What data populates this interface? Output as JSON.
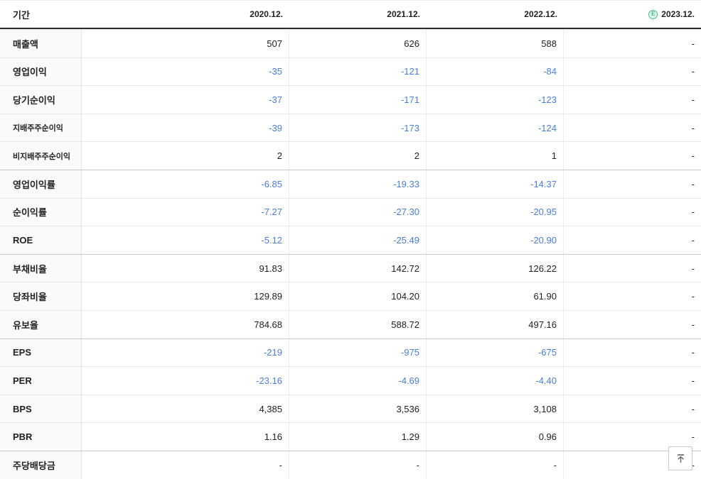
{
  "header": {
    "period_label": "기간",
    "columns": [
      {
        "label": "2020.12.",
        "estimate": false
      },
      {
        "label": "2021.12.",
        "estimate": false
      },
      {
        "label": "2022.12.",
        "estimate": false
      },
      {
        "label": "2023.12.",
        "estimate": true
      }
    ],
    "estimate_icon_letter": "E"
  },
  "rows": [
    {
      "label": "매출액",
      "sub": false,
      "group": false,
      "values": [
        "507",
        "626",
        "588",
        "-"
      ]
    },
    {
      "label": "영업이익",
      "sub": false,
      "group": false,
      "values": [
        "-35",
        "-121",
        "-84",
        "-"
      ]
    },
    {
      "label": "당기순이익",
      "sub": false,
      "group": false,
      "values": [
        "-37",
        "-171",
        "-123",
        "-"
      ]
    },
    {
      "label": "지배주주순이익",
      "sub": true,
      "group": false,
      "values": [
        "-39",
        "-173",
        "-124",
        "-"
      ]
    },
    {
      "label": "비지배주주순이익",
      "sub": true,
      "group": false,
      "values": [
        "2",
        "2",
        "1",
        "-"
      ]
    },
    {
      "label": "영업이익률",
      "sub": false,
      "group": true,
      "values": [
        "-6.85",
        "-19.33",
        "-14.37",
        "-"
      ]
    },
    {
      "label": "순이익률",
      "sub": false,
      "group": false,
      "values": [
        "-7.27",
        "-27.30",
        "-20.95",
        "-"
      ]
    },
    {
      "label": "ROE",
      "sub": false,
      "group": false,
      "values": [
        "-5.12",
        "-25.49",
        "-20.90",
        "-"
      ]
    },
    {
      "label": "부채비율",
      "sub": false,
      "group": true,
      "values": [
        "91.83",
        "142.72",
        "126.22",
        "-"
      ]
    },
    {
      "label": "당좌비율",
      "sub": false,
      "group": false,
      "values": [
        "129.89",
        "104.20",
        "61.90",
        "-"
      ]
    },
    {
      "label": "유보율",
      "sub": false,
      "group": false,
      "values": [
        "784.68",
        "588.72",
        "497.16",
        "-"
      ]
    },
    {
      "label": "EPS",
      "sub": false,
      "group": true,
      "values": [
        "-219",
        "-975",
        "-675",
        "-"
      ]
    },
    {
      "label": "PER",
      "sub": false,
      "group": false,
      "values": [
        "-23.16",
        "-4.69",
        "-4.40",
        "-"
      ]
    },
    {
      "label": "BPS",
      "sub": false,
      "group": false,
      "values": [
        "4,385",
        "3,536",
        "3,108",
        "-"
      ]
    },
    {
      "label": "PBR",
      "sub": false,
      "group": false,
      "values": [
        "1.16",
        "1.29",
        "0.96",
        "-"
      ]
    },
    {
      "label": "주당배당금",
      "sub": false,
      "group": true,
      "values": [
        "-",
        "-",
        "-",
        "-"
      ]
    }
  ],
  "colors": {
    "negative_value": "#4a7de2",
    "positive_value": "#222222",
    "estimate_green": "#3dbd85",
    "header_border": "#2b2b2b"
  },
  "scroll_top_button": {
    "icon": "arrow-to-top"
  }
}
